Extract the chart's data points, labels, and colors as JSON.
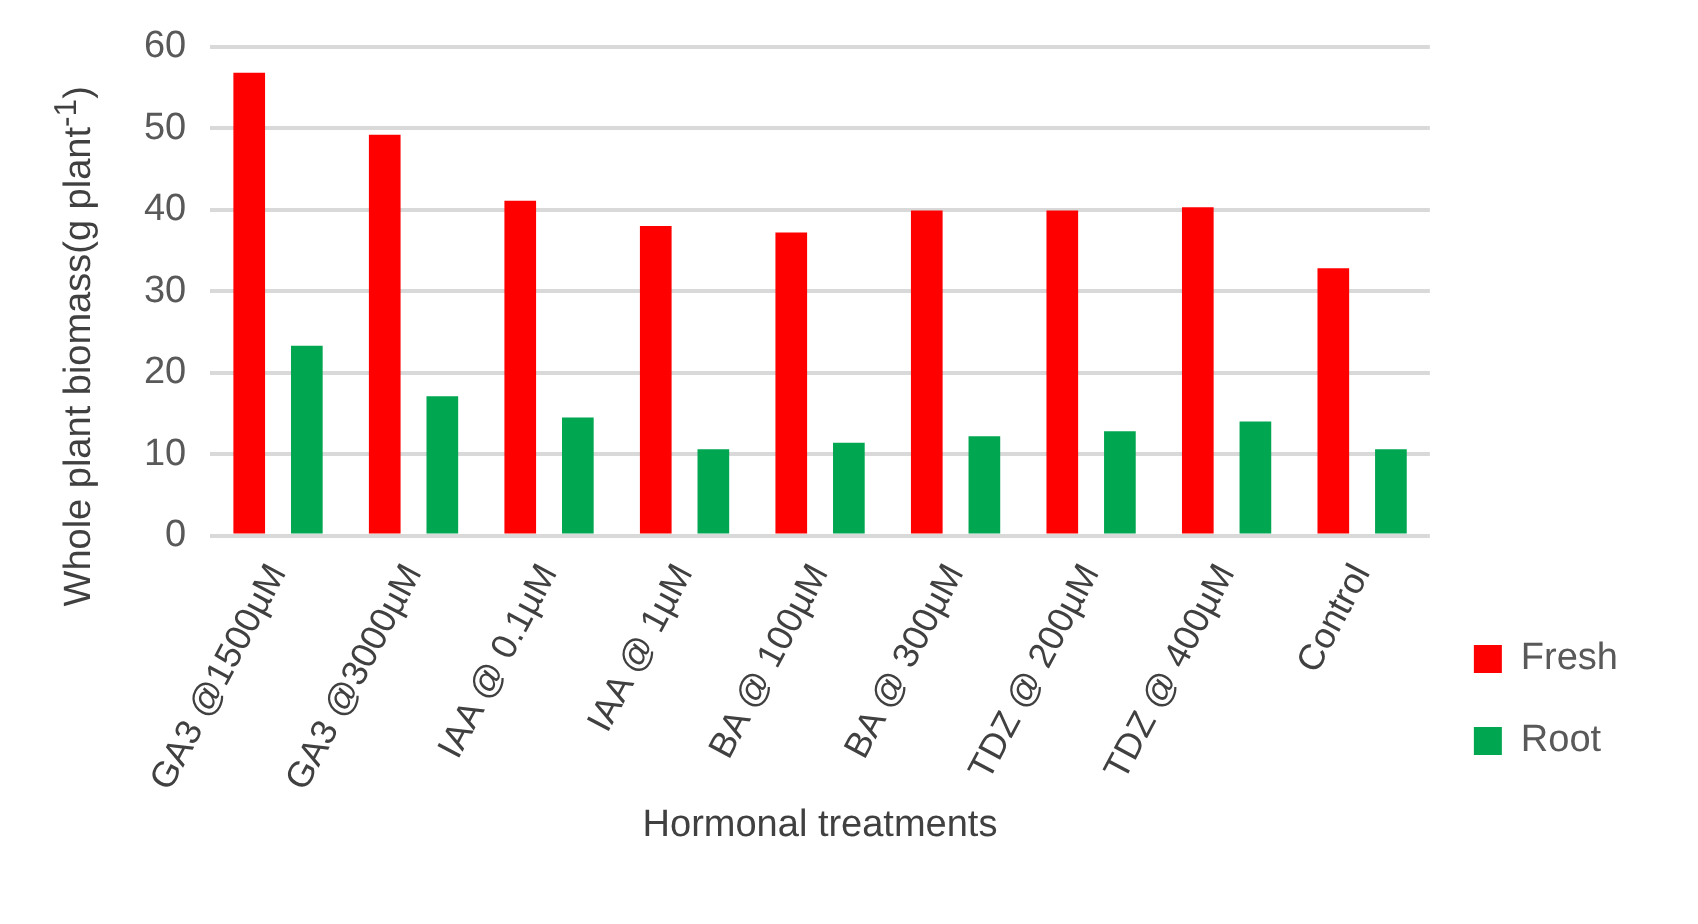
{
  "chart_data": {
    "type": "bar",
    "xlabel": "Hormonal treatments",
    "ylabel": "Whole plant biomass(g plant$^{-1}$)",
    "categories": [
      "GA3 @1500µM",
      "GA3 @3000µM",
      "IAA @ 0.1µM",
      "IAA @ 1µM",
      "BA @ 100µM",
      "BA @ 300µM",
      "TDZ @ 200µM",
      "TDZ @ 400µM",
      "Control"
    ],
    "series": [
      {
        "name": "Fresh",
        "color": "#ff0000",
        "values": [
          56.8,
          49.2,
          41.1,
          38.0,
          37.2,
          39.9,
          39.9,
          40.3,
          32.8
        ]
      },
      {
        "name": "Root",
        "color": "#00a650",
        "values": [
          23.3,
          17.1,
          14.5,
          10.6,
          11.4,
          12.2,
          12.8,
          14.0,
          10.6
        ]
      }
    ],
    "ylim": [
      0,
      60
    ],
    "yticks": [
      0,
      10,
      20,
      30,
      40,
      50,
      60
    ],
    "grid": "y",
    "legend": "right"
  }
}
